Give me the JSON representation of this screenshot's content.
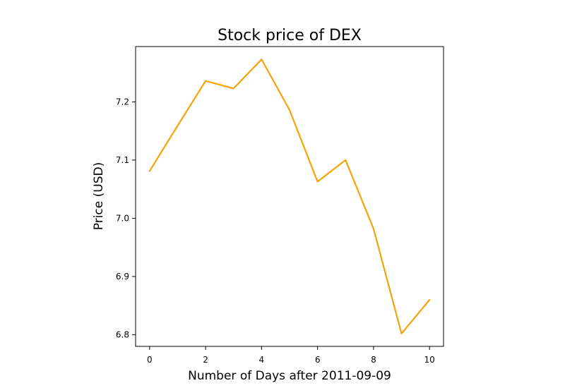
{
  "chart_data": {
    "type": "line",
    "title": "Stock price of DEX",
    "xlabel": "Number of Days after 2011-09-09",
    "ylabel": "Price (USD)",
    "xlim": [
      -0.5,
      10.5
    ],
    "ylim": [
      6.78,
      7.295
    ],
    "xticks": [
      0,
      2,
      4,
      6,
      8,
      10
    ],
    "yticks": [
      6.8,
      6.9,
      7.0,
      7.1,
      7.2
    ],
    "ytick_labels": [
      "6.8",
      "6.9",
      "7.0",
      "7.1",
      "7.2"
    ],
    "grid": false,
    "series": [
      {
        "color": "#f5a30a",
        "x": [
          0,
          1,
          2,
          3,
          4,
          5,
          6,
          7,
          8,
          9,
          10
        ],
        "y": [
          7.081,
          7.159,
          7.236,
          7.223,
          7.273,
          7.186,
          7.063,
          7.1,
          6.982,
          6.802,
          6.86
        ]
      }
    ]
  }
}
